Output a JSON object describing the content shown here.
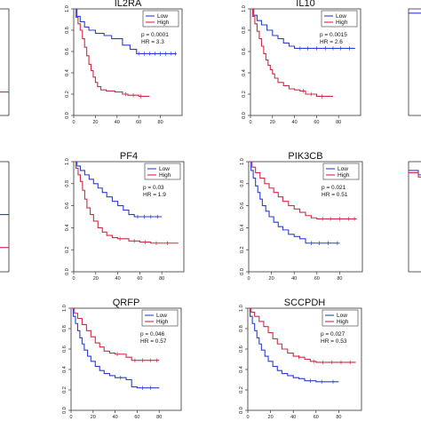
{
  "chart_data": [
    {
      "type": "line",
      "title": "",
      "xlim": [
        0,
        100
      ],
      "ylim": [
        0,
        1
      ],
      "legend": {
        "placement": "top-right",
        "entries": []
      },
      "annotation": {
        "p_text": "",
        "hr_text": ""
      },
      "series": [
        {
          "color": "#d02b45",
          "x": [
            0,
            100
          ],
          "y": [
            0.22,
            0.22
          ]
        }
      ]
    },
    {
      "type": "line",
      "title": "IL2RA",
      "xlim": [
        0,
        100
      ],
      "ylim": [
        0,
        1
      ],
      "xticks": [
        0,
        20,
        40,
        60,
        80
      ],
      "xtick_labels": [
        "0",
        "20",
        "40",
        "60",
        "80"
      ],
      "yticks": [
        0,
        0.2,
        0.4,
        0.6,
        0.8,
        1.0
      ],
      "ytick_labels": [
        "0.0",
        "0.2",
        "0.4",
        "0.6",
        "0.8",
        "1.0"
      ],
      "legend": {
        "placement": "top-right",
        "entries": [
          {
            "label": "Low",
            "color": "#2b3fd0"
          },
          {
            "label": "High",
            "color": "#d02b45"
          }
        ]
      },
      "annotation": {
        "p_text": "p = 0.0001",
        "hr_text": "HR = 3.3"
      },
      "series": [
        {
          "name": "Low",
          "color": "#2b3fd0",
          "x": [
            0,
            3,
            6,
            10,
            14,
            20,
            28,
            35,
            45,
            52,
            58,
            95
          ],
          "y": [
            1.0,
            0.93,
            0.88,
            0.83,
            0.8,
            0.77,
            0.75,
            0.72,
            0.66,
            0.62,
            0.58,
            0.58
          ],
          "censor_x": [
            60,
            65,
            70,
            75,
            80,
            85,
            90,
            94
          ]
        },
        {
          "name": "High",
          "color": "#d02b45",
          "x": [
            0,
            2,
            4,
            6,
            8,
            10,
            12,
            14,
            16,
            18,
            20,
            22,
            25,
            30,
            38,
            45,
            50,
            60,
            70
          ],
          "y": [
            1.0,
            0.92,
            0.86,
            0.8,
            0.72,
            0.64,
            0.56,
            0.48,
            0.42,
            0.36,
            0.31,
            0.27,
            0.24,
            0.23,
            0.22,
            0.2,
            0.19,
            0.18,
            0.18
          ],
          "censor_x": [
            48,
            55,
            62
          ]
        }
      ]
    },
    {
      "type": "line",
      "title": "IL10",
      "xlim": [
        0,
        100
      ],
      "ylim": [
        0,
        1
      ],
      "xticks": [
        0,
        20,
        40,
        60,
        80
      ],
      "xtick_labels": [
        "0",
        "20",
        "40",
        "60",
        "80"
      ],
      "yticks": [
        0,
        0.2,
        0.4,
        0.6,
        0.8,
        1.0
      ],
      "ytick_labels": [
        "0.0",
        "0.2",
        "0.4",
        "0.6",
        "0.8",
        "1.0"
      ],
      "legend": {
        "placement": "top-right",
        "entries": [
          {
            "label": "Low",
            "color": "#2b3fd0"
          },
          {
            "label": "High",
            "color": "#d02b45"
          }
        ]
      },
      "annotation": {
        "p_text": "p = 0.0015",
        "hr_text": "HR = 2.6"
      },
      "series": [
        {
          "name": "Low",
          "color": "#2b3fd0",
          "x": [
            0,
            3,
            6,
            10,
            15,
            20,
            25,
            30,
            35,
            40,
            95
          ],
          "y": [
            1.0,
            0.94,
            0.89,
            0.85,
            0.8,
            0.75,
            0.72,
            0.68,
            0.65,
            0.63,
            0.63
          ],
          "censor_x": [
            45,
            52,
            60,
            68,
            75,
            82,
            90
          ]
        },
        {
          "name": "High",
          "color": "#d02b45",
          "x": [
            0,
            2,
            4,
            6,
            8,
            10,
            12,
            14,
            16,
            18,
            20,
            22,
            25,
            30,
            35,
            40,
            45,
            50,
            60,
            75
          ],
          "y": [
            1.0,
            0.93,
            0.86,
            0.79,
            0.72,
            0.65,
            0.58,
            0.52,
            0.47,
            0.43,
            0.39,
            0.35,
            0.31,
            0.28,
            0.25,
            0.24,
            0.23,
            0.2,
            0.18,
            0.18
          ],
          "censor_x": [
            48,
            55,
            65
          ]
        }
      ]
    },
    {
      "type": "line",
      "title": "",
      "xlim": [
        0,
        100
      ],
      "ylim": [
        0,
        1
      ],
      "legend": {
        "placement": "top-right",
        "entries": []
      },
      "annotation": {
        "p_text": "",
        "hr_text": ""
      },
      "series": [
        {
          "color": "#2b3fd0",
          "x": [
            0,
            100
          ],
          "y": [
            0.96,
            0.96
          ]
        }
      ]
    },
    {
      "type": "line",
      "title": "",
      "xlim": [
        0,
        100
      ],
      "ylim": [
        0,
        1
      ],
      "xticks": [
        0
      ],
      "xtick_labels": [
        "0"
      ],
      "legend": {
        "placement": "top-right",
        "entries": []
      },
      "annotation": {
        "p_text": "",
        "hr_text": ""
      },
      "series": [
        {
          "color": "#2b3fd0",
          "x": [
            0,
            100
          ],
          "y": [
            0.52,
            0.52
          ]
        },
        {
          "color": "#d02b45",
          "x": [
            0,
            100
          ],
          "y": [
            0.22,
            0.22
          ]
        }
      ]
    },
    {
      "type": "line",
      "title": "PF4",
      "xlim": [
        0,
        100
      ],
      "ylim": [
        0,
        1
      ],
      "xticks": [
        0,
        20,
        40,
        60,
        80
      ],
      "xtick_labels": [
        "0",
        "20",
        "40",
        "60",
        "80"
      ],
      "yticks": [
        0,
        0.2,
        0.4,
        0.6,
        0.8,
        1.0
      ],
      "ytick_labels": [
        "0.0",
        "0.2",
        "0.4",
        "0.6",
        "0.8",
        "1.0"
      ],
      "legend": {
        "placement": "top-right",
        "entries": [
          {
            "label": "Low",
            "color": "#2b3fd0"
          },
          {
            "label": "High",
            "color": "#d02b45"
          }
        ]
      },
      "annotation": {
        "p_text": "p = 0.03",
        "hr_text": "HR = 1.9"
      },
      "series": [
        {
          "name": "Low",
          "color": "#2b3fd0",
          "x": [
            0,
            3,
            6,
            10,
            14,
            18,
            22,
            26,
            30,
            35,
            40,
            45,
            50,
            55,
            80
          ],
          "y": [
            1.0,
            0.96,
            0.92,
            0.88,
            0.84,
            0.8,
            0.76,
            0.72,
            0.68,
            0.64,
            0.6,
            0.56,
            0.52,
            0.5,
            0.5
          ],
          "censor_x": [
            58,
            64,
            70,
            76
          ]
        },
        {
          "name": "High",
          "color": "#d02b45",
          "x": [
            0,
            2,
            4,
            6,
            8,
            10,
            12,
            15,
            18,
            22,
            26,
            30,
            35,
            40,
            50,
            60,
            70,
            95
          ],
          "y": [
            1.0,
            0.94,
            0.88,
            0.82,
            0.74,
            0.66,
            0.58,
            0.52,
            0.46,
            0.4,
            0.36,
            0.33,
            0.31,
            0.3,
            0.28,
            0.27,
            0.26,
            0.26
          ],
          "censor_x": [
            42,
            55,
            65,
            75,
            85
          ]
        }
      ]
    },
    {
      "type": "line",
      "title": "PIK3CB",
      "xlim": [
        0,
        100
      ],
      "ylim": [
        0,
        1
      ],
      "xticks": [
        0,
        20,
        40,
        60,
        80
      ],
      "xtick_labels": [
        "0",
        "20",
        "40",
        "60",
        "80"
      ],
      "yticks": [
        0,
        0.2,
        0.4,
        0.6,
        0.8,
        1.0
      ],
      "ytick_labels": [
        "0.0",
        "0.2",
        "0.4",
        "0.6",
        "0.8",
        "1.0"
      ],
      "legend": {
        "placement": "top-right",
        "entries": [
          {
            "label": "Low",
            "color": "#2b3fd0"
          },
          {
            "label": "High",
            "color": "#d02b45"
          }
        ]
      },
      "annotation": {
        "p_text": "p = 0.021",
        "hr_text": "HR = 0.51"
      },
      "series": [
        {
          "name": "Low",
          "color": "#2b3fd0",
          "x": [
            0,
            2,
            4,
            6,
            8,
            10,
            12,
            15,
            18,
            22,
            26,
            30,
            35,
            40,
            45,
            50,
            60,
            80
          ],
          "y": [
            1.0,
            0.92,
            0.85,
            0.78,
            0.72,
            0.66,
            0.6,
            0.55,
            0.5,
            0.45,
            0.41,
            0.38,
            0.34,
            0.32,
            0.3,
            0.26,
            0.26,
            0.26
          ],
          "censor_x": [
            55,
            62,
            70,
            78
          ]
        },
        {
          "name": "High",
          "color": "#d02b45",
          "x": [
            0,
            3,
            6,
            10,
            14,
            18,
            22,
            26,
            30,
            35,
            40,
            45,
            50,
            55,
            60,
            95
          ],
          "y": [
            1.0,
            0.95,
            0.9,
            0.85,
            0.8,
            0.76,
            0.72,
            0.68,
            0.64,
            0.6,
            0.57,
            0.54,
            0.51,
            0.49,
            0.48,
            0.48
          ],
          "censor_x": [
            65,
            72,
            80,
            88,
            93
          ]
        }
      ]
    },
    {
      "type": "line",
      "title": "",
      "xlim": [
        0,
        100
      ],
      "ylim": [
        0,
        1
      ],
      "legend": {
        "placement": "top-right",
        "entries": []
      },
      "annotation": {
        "p_text": "",
        "hr_text": ""
      },
      "series": [
        {
          "color": "#2b3fd0",
          "x": [
            0,
            10,
            20,
            30,
            100
          ],
          "y": [
            0.92,
            0.88,
            0.84,
            0.8,
            0.8
          ]
        },
        {
          "color": "#d02b45",
          "x": [
            0,
            10,
            20,
            30,
            100
          ],
          "y": [
            0.9,
            0.86,
            0.82,
            0.78,
            0.78
          ]
        }
      ]
    },
    {
      "type": "line",
      "title": "QRFP",
      "xlim": [
        0,
        100
      ],
      "ylim": [
        0,
        1
      ],
      "xticks": [
        0,
        20,
        40,
        60,
        80
      ],
      "xtick_labels": [
        "0",
        "20",
        "40",
        "60",
        "80"
      ],
      "yticks": [
        0,
        0.2,
        0.4,
        0.6,
        0.8,
        1.0
      ],
      "ytick_labels": [
        "0.0",
        "0.2",
        "0.4",
        "0.6",
        "0.8",
        "1.0"
      ],
      "legend": {
        "placement": "top-right",
        "entries": [
          {
            "label": "Low",
            "color": "#2b3fd0"
          },
          {
            "label": "High",
            "color": "#d02b45"
          }
        ]
      },
      "annotation": {
        "p_text": "p = 0.046",
        "hr_text": "HR = 0.57"
      },
      "series": [
        {
          "name": "Low",
          "color": "#2b3fd0",
          "x": [
            0,
            2,
            4,
            6,
            8,
            10,
            12,
            15,
            18,
            22,
            26,
            30,
            35,
            40,
            50,
            55,
            60,
            80
          ],
          "y": [
            1.0,
            0.92,
            0.85,
            0.78,
            0.71,
            0.65,
            0.59,
            0.53,
            0.48,
            0.43,
            0.39,
            0.36,
            0.34,
            0.32,
            0.3,
            0.23,
            0.22,
            0.22
          ],
          "censor_x": [
            45,
            65,
            72
          ]
        },
        {
          "name": "High",
          "color": "#d02b45",
          "x": [
            0,
            3,
            6,
            10,
            14,
            18,
            22,
            26,
            30,
            35,
            40,
            45,
            50,
            55,
            80
          ],
          "y": [
            1.0,
            0.95,
            0.9,
            0.84,
            0.78,
            0.72,
            0.66,
            0.62,
            0.58,
            0.56,
            0.55,
            0.55,
            0.52,
            0.49,
            0.49
          ],
          "censor_x": [
            42,
            58,
            65,
            72,
            78
          ]
        }
      ]
    },
    {
      "type": "line",
      "title": "SCCPDH",
      "xlim": [
        0,
        100
      ],
      "ylim": [
        0,
        1
      ],
      "xticks": [
        0,
        20,
        40,
        60,
        80
      ],
      "xtick_labels": [
        "0",
        "20",
        "40",
        "60",
        "80"
      ],
      "yticks": [
        0,
        0.2,
        0.4,
        0.6,
        0.8,
        1.0
      ],
      "ytick_labels": [
        "0.0",
        "0.2",
        "0.4",
        "0.6",
        "0.8",
        "1.0"
      ],
      "legend": {
        "placement": "top-right",
        "entries": [
          {
            "label": "Low",
            "color": "#2b3fd0"
          },
          {
            "label": "High",
            "color": "#d02b45"
          }
        ]
      },
      "annotation": {
        "p_text": "p = 0.027",
        "hr_text": "HR = 0.53"
      },
      "series": [
        {
          "name": "Low",
          "color": "#2b3fd0",
          "x": [
            0,
            2,
            4,
            6,
            8,
            10,
            12,
            15,
            18,
            22,
            26,
            30,
            35,
            40,
            45,
            50,
            60,
            80
          ],
          "y": [
            1.0,
            0.92,
            0.85,
            0.78,
            0.71,
            0.65,
            0.59,
            0.53,
            0.48,
            0.43,
            0.39,
            0.36,
            0.34,
            0.32,
            0.31,
            0.29,
            0.28,
            0.28
          ],
          "censor_x": [
            55,
            65,
            75
          ]
        },
        {
          "name": "High",
          "color": "#d02b45",
          "x": [
            0,
            3,
            6,
            10,
            14,
            18,
            22,
            26,
            30,
            35,
            40,
            45,
            50,
            55,
            60,
            95
          ],
          "y": [
            1.0,
            0.96,
            0.92,
            0.87,
            0.82,
            0.76,
            0.7,
            0.65,
            0.6,
            0.56,
            0.53,
            0.52,
            0.5,
            0.48,
            0.47,
            0.47
          ],
          "censor_x": [
            45,
            58,
            66,
            74,
            82,
            90
          ]
        }
      ]
    }
  ]
}
